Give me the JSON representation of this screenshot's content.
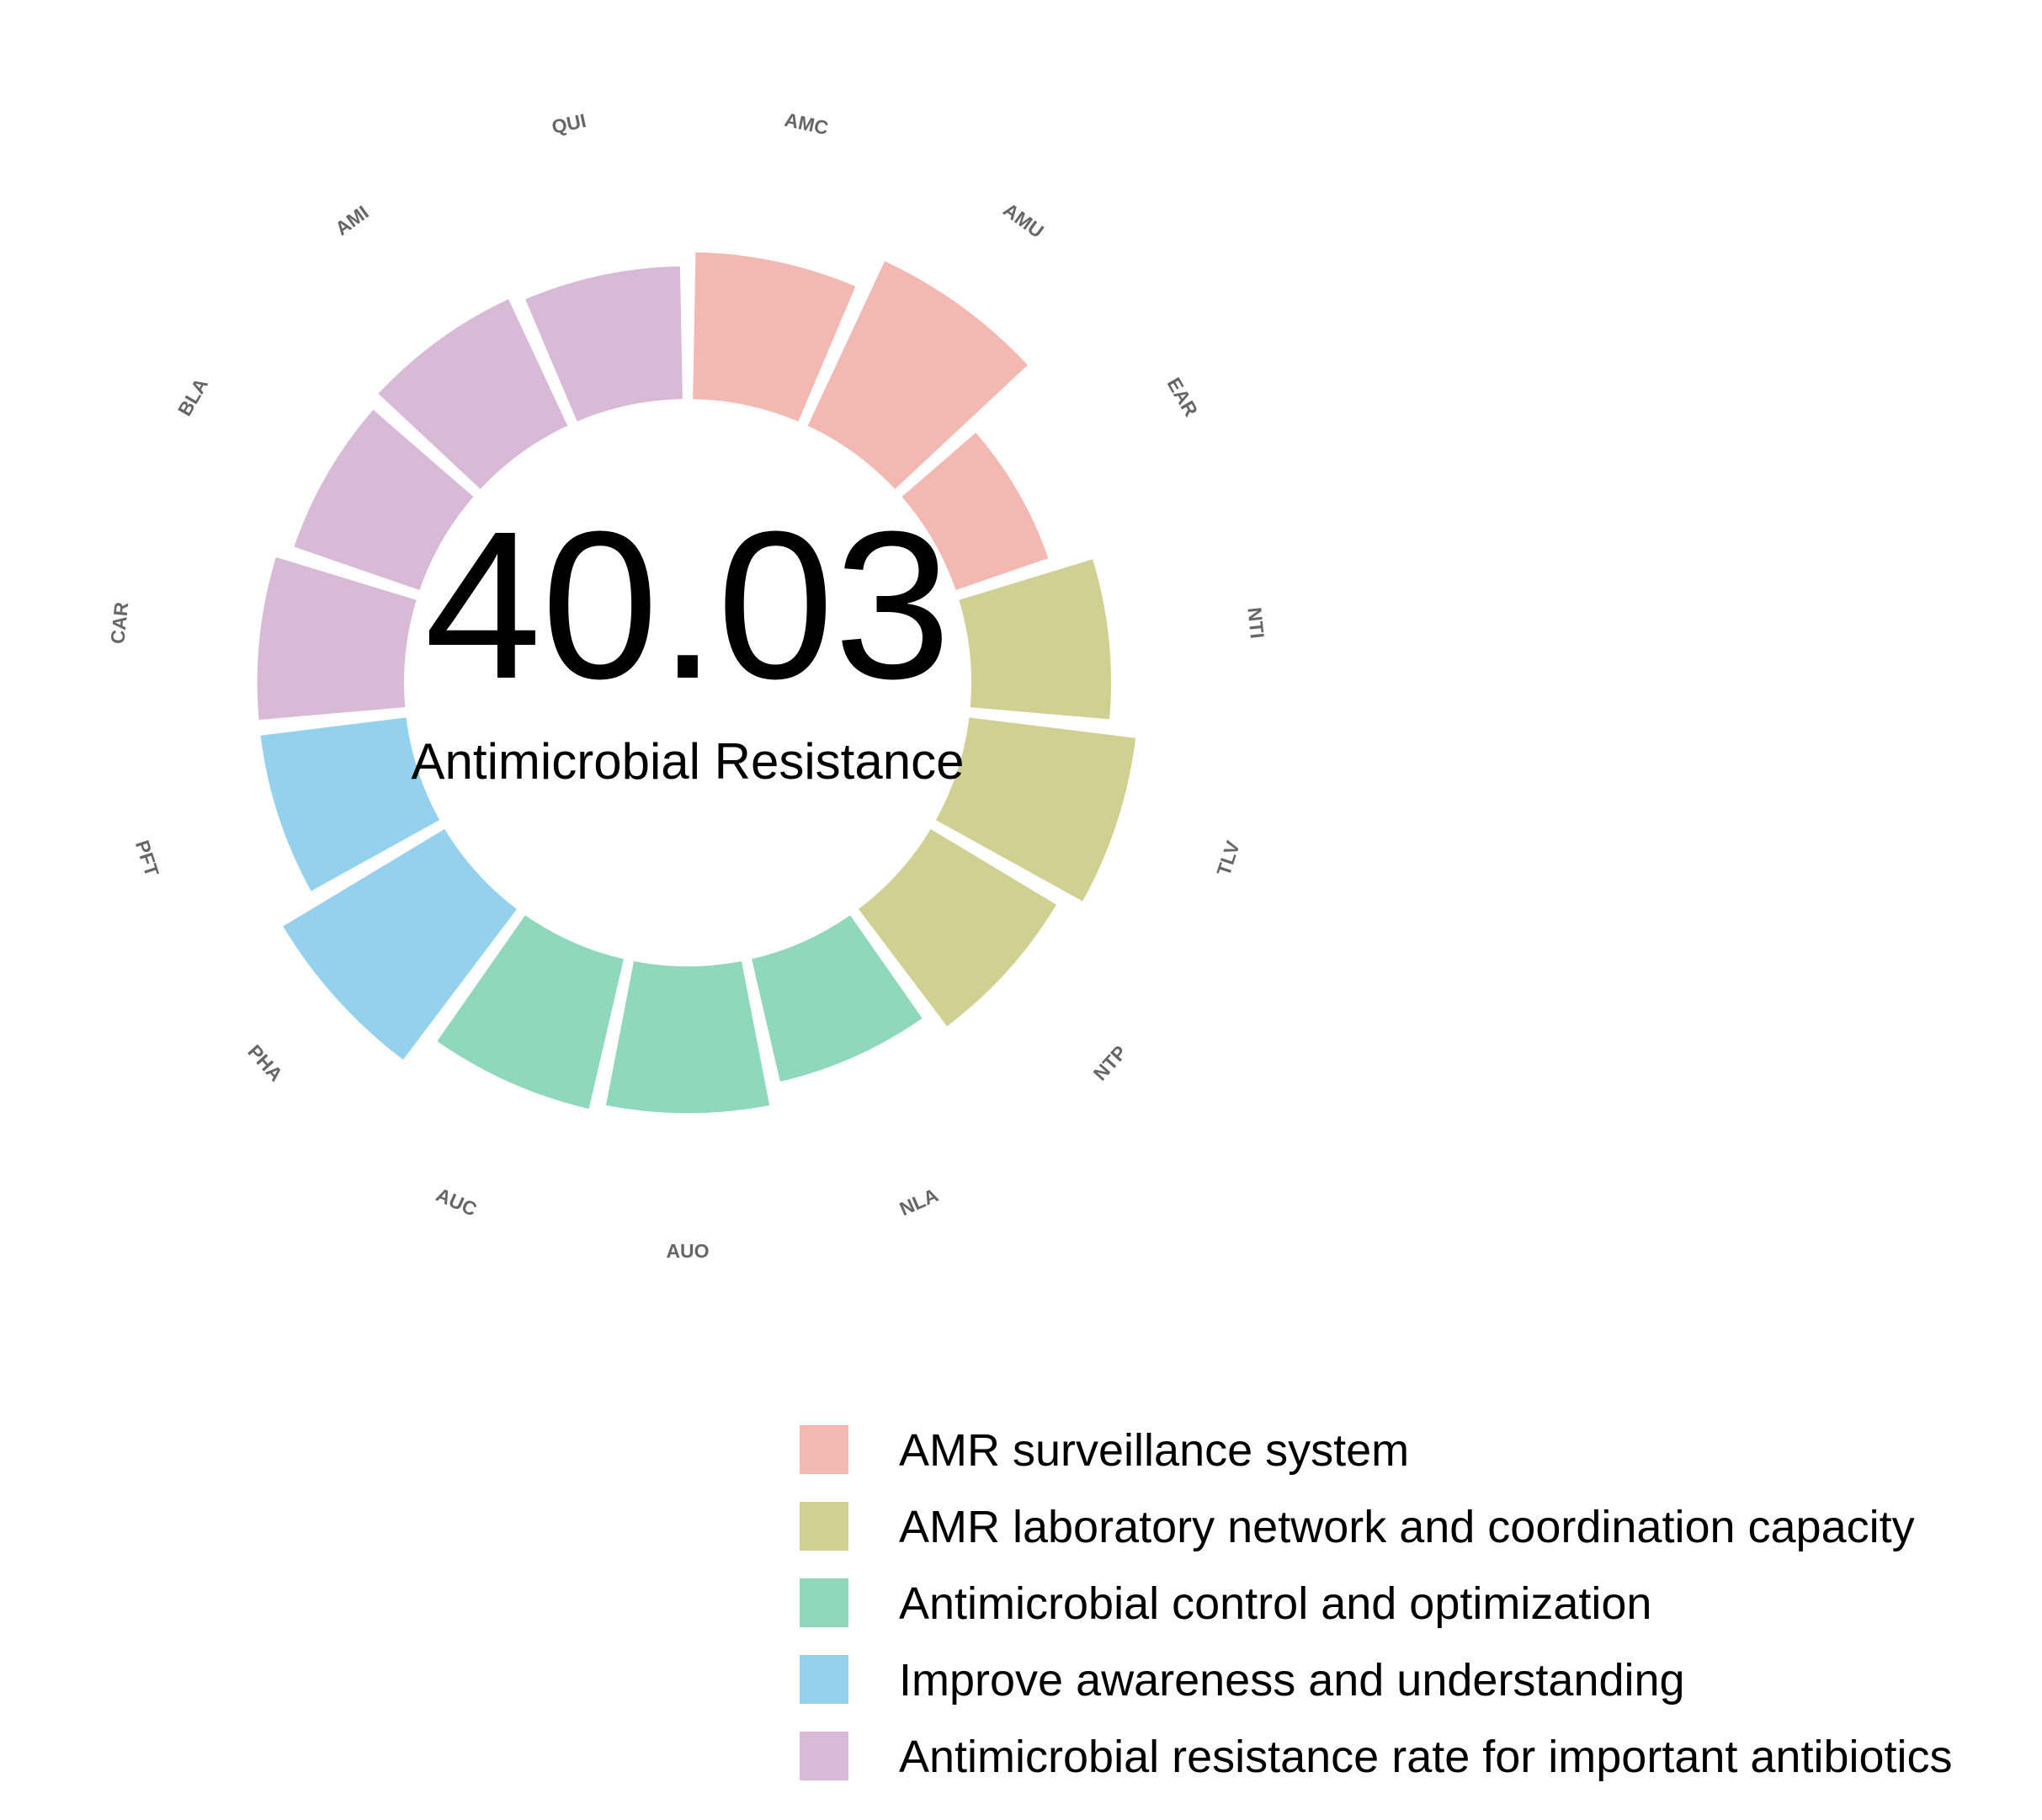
{
  "chart_data": {
    "type": "polar-bar",
    "score": "40.03",
    "center_label": "Antimicrobial Resistance",
    "legend_position": "bottom-right",
    "categories": [
      {
        "name": "AMR surveillance system",
        "color": "#F4B8B3"
      },
      {
        "name": "AMR laboratory network and coordination capacity",
        "color": "#CFD091"
      },
      {
        "name": "Antimicrobial control and optimization",
        "color": "#8FD8BC"
      },
      {
        "name": "Improve awareness and understanding",
        "color": "#94D1EF"
      },
      {
        "name": "Antimicrobial resistance rate for important antibiotics",
        "color": "#D8BAD6"
      }
    ],
    "indicators": [
      {
        "label": "AMC",
        "category": 0,
        "value": 21
      },
      {
        "label": "AMU",
        "category": 0,
        "value": 26
      },
      {
        "label": "EAR",
        "category": 0,
        "value": 14
      },
      {
        "label": "NTI",
        "category": 1,
        "value": 20
      },
      {
        "label": "TLV",
        "category": 1,
        "value": 24
      },
      {
        "label": "NTP",
        "category": 1,
        "value": 21
      },
      {
        "label": "NLA",
        "category": 2,
        "value": 18
      },
      {
        "label": "AUO",
        "category": 2,
        "value": 21
      },
      {
        "label": "AUC",
        "category": 2,
        "value": 22
      },
      {
        "label": "PHA",
        "category": 3,
        "value": 27
      },
      {
        "label": "PFT",
        "category": 3,
        "value": 21
      },
      {
        "label": "CAR",
        "category": 4,
        "value": 21
      },
      {
        "label": "BLA",
        "category": 4,
        "value": 19
      },
      {
        "label": "AMI",
        "category": 4,
        "value": 20
      },
      {
        "label": "QUI",
        "category": 4,
        "value": 19
      }
    ]
  }
}
